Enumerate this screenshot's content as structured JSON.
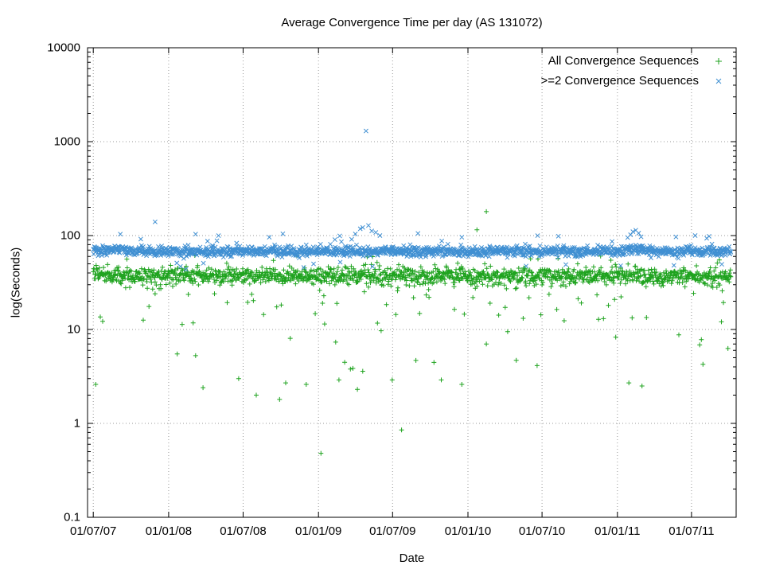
{
  "chart_data": {
    "type": "scatter",
    "title": "Average Convergence Time per day (AS 131072)",
    "xlabel": "Date",
    "ylabel": "log(Seconds)",
    "y_scale": "log",
    "ylim": [
      0.1,
      10000
    ],
    "y_tick_labels": [
      "0.1",
      "1",
      "10",
      "100",
      "1000",
      "10000"
    ],
    "y_tick_values": [
      0.1,
      1,
      10,
      100,
      1000,
      10000
    ],
    "grid": true,
    "x_axis": {
      "tick_labels": [
        "01/07/07",
        "01/01/08",
        "01/07/08",
        "01/01/09",
        "01/07/09",
        "01/01/10",
        "01/07/10",
        "01/01/11",
        "01/07/11"
      ],
      "tick_days": [
        0,
        184,
        366,
        550,
        731,
        915,
        1096,
        1280,
        1461
      ],
      "domain_days": [
        -14,
        1570
      ]
    },
    "legend_position": "top-right",
    "series": [
      {
        "name": "All Convergence Sequences",
        "marker": "plus",
        "color": "#1fa31f",
        "band_model": {
          "n_days": 1558,
          "log10_mean": 1.568,
          "log10_sd": 0.048,
          "low_tail": {
            "prob": 0.03,
            "log10_range": [
              1.04,
              1.42
            ]
          },
          "low_tail2": {
            "prob": 0.015,
            "log10_range": [
              0.55,
              1.0
            ]
          },
          "high_tail": {
            "prob": 0.006,
            "log10_range": [
              1.7,
              1.79
            ]
          },
          "mean_shifts": [
            [
              0,
              60,
              0.03
            ]
          ]
        },
        "outliers": [
          [
            6,
            2.6
          ],
          [
            151,
            24
          ],
          [
            268,
            2.4
          ],
          [
            355,
            3.0
          ],
          [
            398,
            2.0
          ],
          [
            455,
            1.8
          ],
          [
            470,
            2.7
          ],
          [
            520,
            2.6
          ],
          [
            556,
            0.48
          ],
          [
            600,
            2.9
          ],
          [
            645,
            2.3
          ],
          [
            730,
            2.9
          ],
          [
            753,
            0.85
          ],
          [
            850,
            2.9
          ],
          [
            900,
            2.6
          ],
          [
            937,
            115
          ],
          [
            960,
            180
          ],
          [
            1308,
            2.7
          ],
          [
            1340,
            2.5
          ]
        ]
      },
      {
        "name": ">=2 Convergence Sequences",
        "marker": "cross",
        "color": "#3f8fd2",
        "band_model": {
          "n_days": 1558,
          "log10_mean": 1.832,
          "log10_sd": 0.026,
          "low_tail": {
            "prob": 0.01,
            "log10_range": [
              1.63,
              1.73
            ]
          },
          "high_tail": {
            "prob": 0.018,
            "log10_range": [
              1.93,
              2.03
            ]
          },
          "mean_shifts": [
            [
              0,
              80,
              0.02
            ],
            [
              1295,
              1345,
              0.03
            ]
          ]
        },
        "outliers": [
          [
            151,
            140
          ],
          [
            430,
            96
          ],
          [
            640,
            104
          ],
          [
            652,
            118
          ],
          [
            658,
            122
          ],
          [
            666,
            1300
          ],
          [
            672,
            128
          ],
          [
            680,
            112
          ],
          [
            690,
            108
          ],
          [
            700,
            100
          ],
          [
            900,
            96
          ],
          [
            1305,
            95
          ],
          [
            1312,
            102
          ],
          [
            1318,
            110
          ],
          [
            1325,
            114
          ],
          [
            1332,
            106
          ],
          [
            1338,
            97
          ],
          [
            1470,
            100
          ]
        ]
      }
    ]
  }
}
